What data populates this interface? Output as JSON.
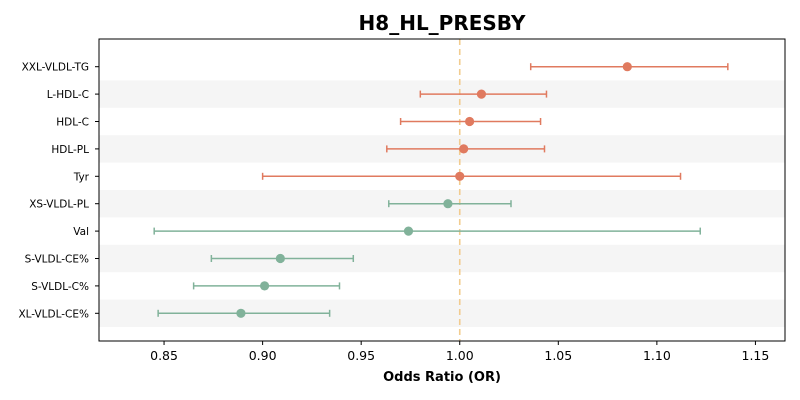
{
  "chart_data": {
    "type": "forest",
    "title": "H8_HL_PRESBY",
    "xlabel": "Odds Ratio (OR)",
    "ylabel": "",
    "xlim": [
      0.817,
      1.165
    ],
    "xticks": [
      0.85,
      0.9,
      0.95,
      1.0,
      1.05,
      1.1,
      1.15
    ],
    "xtick_labels": [
      "0.85",
      "0.90",
      "0.95",
      "1.00",
      "1.05",
      "1.10",
      "1.15"
    ],
    "reference_line": 1.0,
    "alternating_row_shading": true,
    "rows": [
      {
        "label": "XXL-VLDL-TG",
        "or": 1.085,
        "ci_low": 1.036,
        "ci_high": 1.136,
        "direction": "positive"
      },
      {
        "label": "L-HDL-C",
        "or": 1.011,
        "ci_low": 0.98,
        "ci_high": 1.044,
        "direction": "positive"
      },
      {
        "label": "HDL-C",
        "or": 1.005,
        "ci_low": 0.97,
        "ci_high": 1.041,
        "direction": "positive"
      },
      {
        "label": "HDL-PL",
        "or": 1.002,
        "ci_low": 0.963,
        "ci_high": 1.043,
        "direction": "positive"
      },
      {
        "label": "Tyr",
        "or": 1.0,
        "ci_low": 0.9,
        "ci_high": 1.112,
        "direction": "positive"
      },
      {
        "label": "XS-VLDL-PL",
        "or": 0.994,
        "ci_low": 0.964,
        "ci_high": 1.026,
        "direction": "negative"
      },
      {
        "label": "Val",
        "or": 0.974,
        "ci_low": 0.845,
        "ci_high": 1.122,
        "direction": "negative"
      },
      {
        "label": "S-VLDL-CE%",
        "or": 0.909,
        "ci_low": 0.874,
        "ci_high": 0.946,
        "direction": "negative"
      },
      {
        "label": "S-VLDL-C%",
        "or": 0.901,
        "ci_low": 0.865,
        "ci_high": 0.939,
        "direction": "negative"
      },
      {
        "label": "XL-VLDL-CE%",
        "or": 0.889,
        "ci_low": 0.847,
        "ci_high": 0.934,
        "direction": "negative"
      }
    ],
    "colors": {
      "positive": "#E07A5F",
      "negative": "#81B29A",
      "reference_line": "#F2CC8F",
      "row_shade": "#F5F5F5"
    }
  }
}
